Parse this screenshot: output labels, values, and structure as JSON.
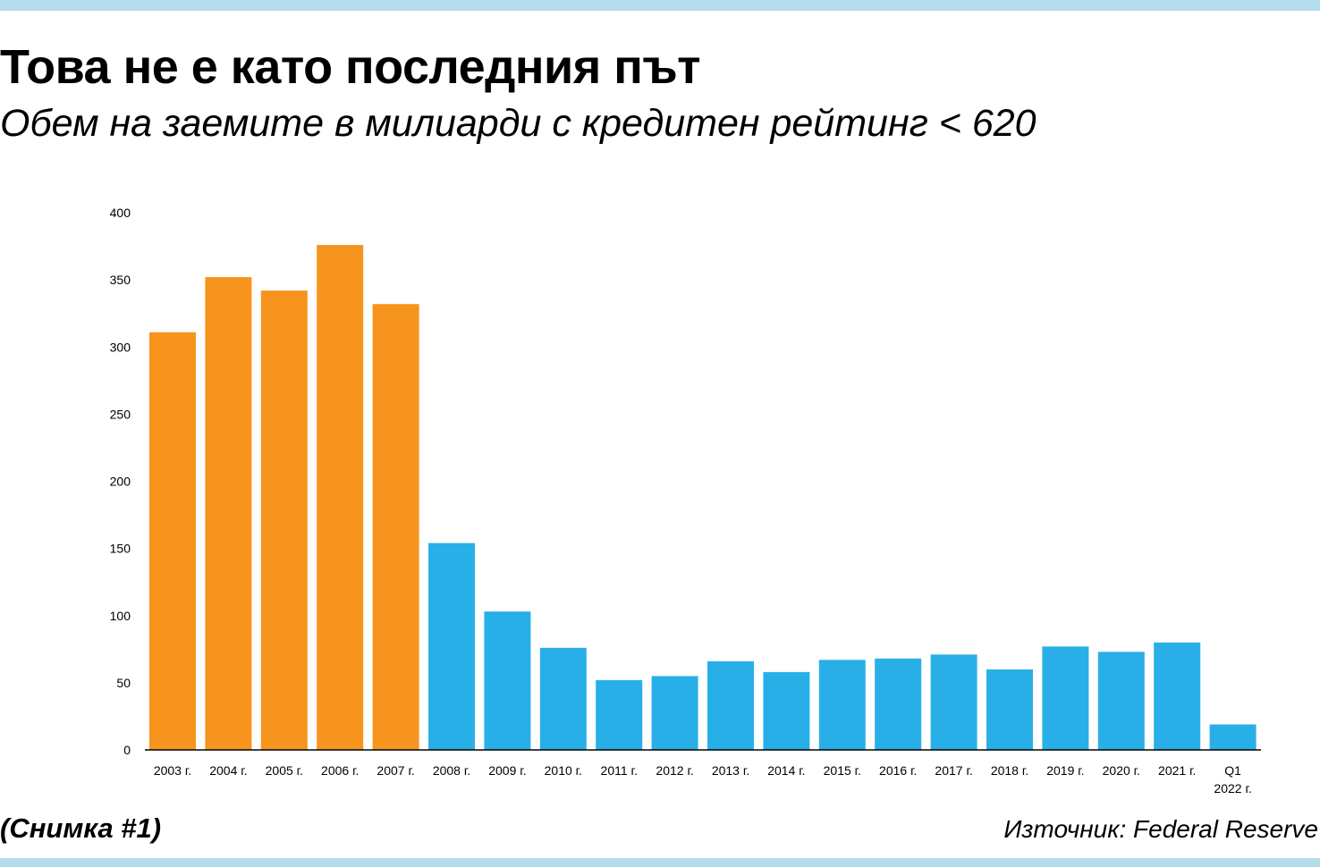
{
  "title": "Това не е като последния път",
  "subtitle": "Обем на заемите в милиарди с кредитен рейтинг < 620",
  "caption": "(Снимка #1)",
  "source": "Източник: Federal Reserve",
  "colors": {
    "rule": "#b5dced",
    "pre_2008": "#f7941d",
    "post_2008": "#29afe8",
    "axis": "#000000"
  },
  "chart_data": {
    "type": "bar",
    "title": "Това не е като последния път",
    "subtitle": "Обем на заемите в милиарди с кредитен рейтинг < 620",
    "xlabel": "",
    "ylabel": "",
    "ylim": [
      0,
      400
    ],
    "yticks": [
      0,
      50,
      100,
      150,
      200,
      250,
      300,
      350,
      400
    ],
    "grid": false,
    "categories": [
      "2003 г.",
      "2004 г.",
      "2005 г.",
      "2006 г.",
      "2007 г.",
      "2008 г.",
      "2009 г.",
      "2010 г.",
      "2011 г.",
      "2012 г.",
      "2013 г.",
      "2014 г.",
      "2015 г.",
      "2016 г.",
      "2017 г.",
      "2018 г.",
      "2019 г.",
      "2020 г.",
      "2021 г.",
      "Q1 2022 г."
    ],
    "category_lines": [
      [
        "2003 г."
      ],
      [
        "2004 г."
      ],
      [
        "2005 г."
      ],
      [
        "2006 г."
      ],
      [
        "2007 г."
      ],
      [
        "2008 г."
      ],
      [
        "2009 г."
      ],
      [
        "2010 г."
      ],
      [
        "2011 г."
      ],
      [
        "2012 г."
      ],
      [
        "2013 г."
      ],
      [
        "2014 г."
      ],
      [
        "2015 г."
      ],
      [
        "2016 г."
      ],
      [
        "2017 г."
      ],
      [
        "2018 г."
      ],
      [
        "2019 г."
      ],
      [
        "2020 г."
      ],
      [
        "2021 г."
      ],
      [
        "Q1",
        "2022 г."
      ]
    ],
    "values": [
      311,
      352,
      342,
      376,
      332,
      154,
      103,
      76,
      52,
      55,
      66,
      58,
      67,
      68,
      71,
      60,
      77,
      73,
      80,
      19
    ],
    "bar_colors": [
      "#f7941d",
      "#f7941d",
      "#f7941d",
      "#f7941d",
      "#f7941d",
      "#29afe8",
      "#29afe8",
      "#29afe8",
      "#29afe8",
      "#29afe8",
      "#29afe8",
      "#29afe8",
      "#29afe8",
      "#29afe8",
      "#29afe8",
      "#29afe8",
      "#29afe8",
      "#29afe8",
      "#29afe8",
      "#29afe8"
    ]
  }
}
